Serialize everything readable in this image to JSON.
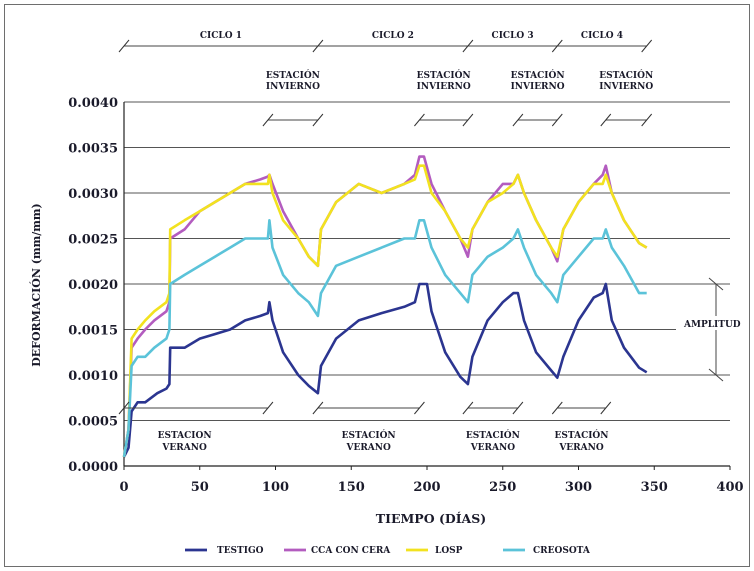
{
  "chart_data": {
    "type": "line",
    "title": "",
    "xlabel": "TIEMPO (DÍAS)",
    "ylabel": "DEFORMACIÓN (mm/mm)",
    "xlim": [
      0,
      400
    ],
    "ylim": [
      0,
      0.004
    ],
    "xticks": [
      "0",
      "50",
      "100",
      "150",
      "200",
      "250",
      "300",
      "350",
      "400"
    ],
    "yticks": [
      "0.0000",
      "0.0005",
      "0.0010",
      "0.0015",
      "0.0020",
      "0.0025",
      "0.0030",
      "0.0035",
      "0.0040"
    ],
    "grid": "horizontal",
    "legend_position": "bottom",
    "series": [
      {
        "name": "TESTIGO",
        "color": "#2b3590",
        "points": [
          [
            0,
            0.0001
          ],
          [
            3,
            0.0002
          ],
          [
            5,
            0.0006
          ],
          [
            9,
            0.0007
          ],
          [
            14,
            0.0007
          ],
          [
            22,
            0.0008
          ],
          [
            28,
            0.00085
          ],
          [
            30,
            0.0009
          ],
          [
            30.5,
            0.0013
          ],
          [
            40,
            0.0013
          ],
          [
            50,
            0.0014
          ],
          [
            60,
            0.00145
          ],
          [
            70,
            0.0015
          ],
          [
            80,
            0.0016
          ],
          [
            90,
            0.00165
          ],
          [
            95,
            0.00168
          ],
          [
            96,
            0.0018
          ],
          [
            98,
            0.0016
          ],
          [
            105,
            0.00125
          ],
          [
            115,
            0.001
          ],
          [
            122,
            0.00088
          ],
          [
            128,
            0.0008
          ],
          [
            130,
            0.0011
          ],
          [
            140,
            0.0014
          ],
          [
            155,
            0.0016
          ],
          [
            170,
            0.00168
          ],
          [
            185,
            0.00175
          ],
          [
            192,
            0.0018
          ],
          [
            195,
            0.002
          ],
          [
            200,
            0.002
          ],
          [
            203,
            0.0017
          ],
          [
            212,
            0.00125
          ],
          [
            222,
            0.00098
          ],
          [
            227,
            0.0009
          ],
          [
            230,
            0.0012
          ],
          [
            240,
            0.0016
          ],
          [
            250,
            0.0018
          ],
          [
            257,
            0.0019
          ],
          [
            260,
            0.0019
          ],
          [
            264,
            0.0016
          ],
          [
            272,
            0.00125
          ],
          [
            282,
            0.00105
          ],
          [
            286,
            0.00097
          ],
          [
            290,
            0.0012
          ],
          [
            300,
            0.0016
          ],
          [
            310,
            0.00185
          ],
          [
            316,
            0.0019
          ],
          [
            318,
            0.002
          ],
          [
            322,
            0.0016
          ],
          [
            330,
            0.0013
          ],
          [
            340,
            0.00108
          ],
          [
            345,
            0.00103
          ]
        ]
      },
      {
        "name": "CCA CON CERA",
        "color": "#b35cbf",
        "points": [
          [
            0,
            0.0001
          ],
          [
            3,
            0.0004
          ],
          [
            5,
            0.0013
          ],
          [
            9,
            0.0014
          ],
          [
            14,
            0.0015
          ],
          [
            20,
            0.0016
          ],
          [
            28,
            0.0017
          ],
          [
            30,
            0.0018
          ],
          [
            30.5,
            0.0025
          ],
          [
            40,
            0.0026
          ],
          [
            50,
            0.0028
          ],
          [
            60,
            0.0029
          ],
          [
            70,
            0.003
          ],
          [
            80,
            0.0031
          ],
          [
            90,
            0.00315
          ],
          [
            95,
            0.00318
          ],
          [
            96,
            0.0032
          ],
          [
            98,
            0.0031
          ],
          [
            105,
            0.0028
          ],
          [
            115,
            0.0025
          ],
          [
            122,
            0.0023
          ],
          [
            128,
            0.0022
          ],
          [
            130,
            0.0026
          ],
          [
            140,
            0.0029
          ],
          [
            155,
            0.0031
          ],
          [
            170,
            0.003
          ],
          [
            185,
            0.0031
          ],
          [
            192,
            0.0032
          ],
          [
            195,
            0.0034
          ],
          [
            198,
            0.0034
          ],
          [
            203,
            0.0031
          ],
          [
            212,
            0.0028
          ],
          [
            222,
            0.0025
          ],
          [
            227,
            0.0023
          ],
          [
            230,
            0.0026
          ],
          [
            240,
            0.0029
          ],
          [
            250,
            0.0031
          ],
          [
            257,
            0.0031
          ],
          [
            260,
            0.0032
          ],
          [
            264,
            0.003
          ],
          [
            272,
            0.0027
          ],
          [
            282,
            0.0024
          ],
          [
            286,
            0.00225
          ],
          [
            290,
            0.0026
          ],
          [
            300,
            0.0029
          ],
          [
            310,
            0.0031
          ],
          [
            316,
            0.0032
          ],
          [
            318,
            0.0033
          ],
          [
            322,
            0.003
          ],
          [
            330,
            0.0027
          ],
          [
            340,
            0.00245
          ],
          [
            345,
            0.0024
          ]
        ]
      },
      {
        "name": "LOSP",
        "color": "#f2e21f",
        "points": [
          [
            0,
            0.0001
          ],
          [
            3,
            0.0004
          ],
          [
            5,
            0.0014
          ],
          [
            9,
            0.0015
          ],
          [
            14,
            0.0016
          ],
          [
            20,
            0.0017
          ],
          [
            28,
            0.0018
          ],
          [
            30,
            0.0019
          ],
          [
            30.5,
            0.0026
          ],
          [
            40,
            0.0027
          ],
          [
            50,
            0.0028
          ],
          [
            60,
            0.0029
          ],
          [
            70,
            0.003
          ],
          [
            80,
            0.0031
          ],
          [
            90,
            0.0031
          ],
          [
            95,
            0.0031
          ],
          [
            96,
            0.0032
          ],
          [
            98,
            0.003
          ],
          [
            105,
            0.0027
          ],
          [
            115,
            0.0025
          ],
          [
            122,
            0.0023
          ],
          [
            128,
            0.0022
          ],
          [
            130,
            0.0026
          ],
          [
            140,
            0.0029
          ],
          [
            155,
            0.0031
          ],
          [
            170,
            0.003
          ],
          [
            185,
            0.0031
          ],
          [
            192,
            0.00315
          ],
          [
            195,
            0.0033
          ],
          [
            198,
            0.0033
          ],
          [
            203,
            0.003
          ],
          [
            212,
            0.0028
          ],
          [
            222,
            0.0025
          ],
          [
            227,
            0.0024
          ],
          [
            230,
            0.0026
          ],
          [
            240,
            0.0029
          ],
          [
            250,
            0.003
          ],
          [
            257,
            0.0031
          ],
          [
            260,
            0.0032
          ],
          [
            264,
            0.003
          ],
          [
            272,
            0.0027
          ],
          [
            282,
            0.0024
          ],
          [
            286,
            0.0023
          ],
          [
            290,
            0.0026
          ],
          [
            300,
            0.0029
          ],
          [
            310,
            0.0031
          ],
          [
            316,
            0.0031
          ],
          [
            318,
            0.0032
          ],
          [
            322,
            0.003
          ],
          [
            330,
            0.0027
          ],
          [
            340,
            0.00245
          ],
          [
            345,
            0.0024
          ]
        ]
      },
      {
        "name": "CREOSOTA",
        "color": "#5bc3d9",
        "points": [
          [
            0,
            0.0001
          ],
          [
            3,
            0.0004
          ],
          [
            5,
            0.0011
          ],
          [
            9,
            0.0012
          ],
          [
            14,
            0.0012
          ],
          [
            20,
            0.0013
          ],
          [
            28,
            0.0014
          ],
          [
            30,
            0.0015
          ],
          [
            30.5,
            0.002
          ],
          [
            40,
            0.0021
          ],
          [
            50,
            0.0022
          ],
          [
            60,
            0.0023
          ],
          [
            70,
            0.0024
          ],
          [
            80,
            0.0025
          ],
          [
            90,
            0.0025
          ],
          [
            95,
            0.0025
          ],
          [
            96,
            0.0027
          ],
          [
            98,
            0.0024
          ],
          [
            105,
            0.0021
          ],
          [
            115,
            0.0019
          ],
          [
            122,
            0.0018
          ],
          [
            128,
            0.00165
          ],
          [
            130,
            0.0019
          ],
          [
            140,
            0.0022
          ],
          [
            155,
            0.0023
          ],
          [
            170,
            0.0024
          ],
          [
            185,
            0.0025
          ],
          [
            192,
            0.0025
          ],
          [
            195,
            0.0027
          ],
          [
            198,
            0.0027
          ],
          [
            203,
            0.0024
          ],
          [
            212,
            0.0021
          ],
          [
            222,
            0.0019
          ],
          [
            227,
            0.0018
          ],
          [
            230,
            0.0021
          ],
          [
            240,
            0.0023
          ],
          [
            250,
            0.0024
          ],
          [
            257,
            0.0025
          ],
          [
            260,
            0.0026
          ],
          [
            264,
            0.0024
          ],
          [
            272,
            0.0021
          ],
          [
            282,
            0.0019
          ],
          [
            286,
            0.0018
          ],
          [
            290,
            0.0021
          ],
          [
            300,
            0.0023
          ],
          [
            310,
            0.0025
          ],
          [
            316,
            0.0025
          ],
          [
            318,
            0.0026
          ],
          [
            322,
            0.0024
          ],
          [
            330,
            0.0022
          ],
          [
            340,
            0.0019
          ],
          [
            345,
            0.0019
          ]
        ]
      }
    ],
    "annotations": {
      "cycles": [
        {
          "label": "CICLO 1",
          "start": 0,
          "end": 128
        },
        {
          "label": "CICLO 2",
          "start": 128,
          "end": 227
        },
        {
          "label": "CICLO 3",
          "start": 227,
          "end": 286
        },
        {
          "label": "CICLO 4",
          "start": 286,
          "end": 345
        }
      ],
      "winter_label": [
        "ESTACIÓN",
        "INVIERNO"
      ],
      "winter_periods": [
        [
          95,
          128
        ],
        [
          195,
          227
        ],
        [
          260,
          286
        ],
        [
          318,
          345
        ]
      ],
      "summer_label": [
        "ESTACION",
        "VERANO"
      ],
      "summer_label_alt": [
        "ESTACIÓN",
        "VERANO"
      ],
      "summer_periods": [
        [
          0,
          95
        ],
        [
          128,
          195
        ],
        [
          227,
          260
        ],
        [
          286,
          318
        ]
      ],
      "amplitude_label": "AMPLITUD",
      "amplitude_range": [
        0.001,
        0.002
      ]
    }
  }
}
